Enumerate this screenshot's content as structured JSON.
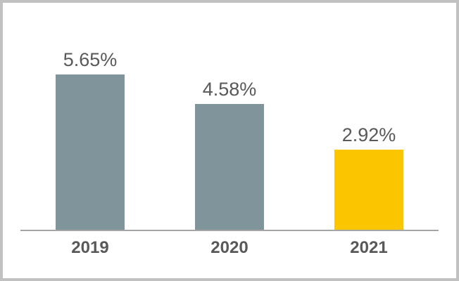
{
  "frame": {
    "background": "#FFFFFF",
    "border_color": "#C1C1C1"
  },
  "chart_data": {
    "type": "bar",
    "title": "",
    "xlabel": "",
    "ylabel": "",
    "categories": [
      "2019",
      "2020",
      "2021"
    ],
    "values": [
      5.65,
      4.58,
      2.92
    ],
    "value_labels": [
      "5.65%",
      "4.58%",
      "2.92%"
    ],
    "bar_colors": [
      "#7F959B",
      "#7F959B",
      "#FBC500"
    ],
    "label_color": "#595959",
    "axis_line_color": "#A6A6A6",
    "ylim": [
      0,
      6
    ],
    "grid": false,
    "legend": false,
    "data_labels": true
  }
}
